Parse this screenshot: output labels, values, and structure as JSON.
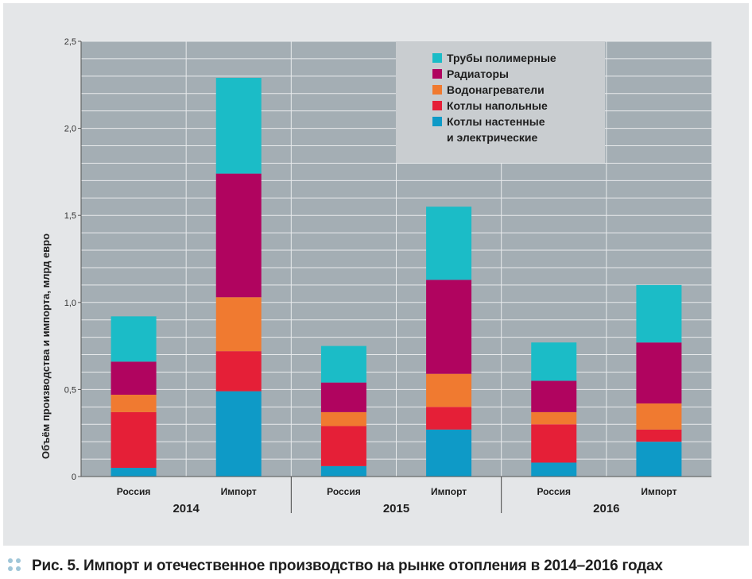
{
  "chart_data": {
    "type": "bar",
    "stacked": true,
    "title": "",
    "ylabel": "Объём производства и импорта, млрд евро",
    "xlabel": "",
    "ylim": [
      0,
      2.5
    ],
    "yticks": [
      0,
      0.5,
      1.0,
      1.5,
      2.0,
      2.5
    ],
    "ytick_labels": [
      "0",
      "0,5",
      "1,0",
      "1,5",
      "2,0",
      "2,5"
    ],
    "groups": [
      "2014",
      "2015",
      "2016"
    ],
    "categories": [
      "Россия",
      "Импорт",
      "Россия",
      "Импорт",
      "Россия",
      "Импорт"
    ],
    "category_group": [
      0,
      0,
      1,
      1,
      2,
      2
    ],
    "series": [
      {
        "name": "Котлы настенные и электрические",
        "color": "#0e9ac7",
        "values": [
          0.05,
          0.49,
          0.06,
          0.27,
          0.08,
          0.2
        ]
      },
      {
        "name": "Котлы напольные",
        "color": "#e51f37",
        "values": [
          0.32,
          0.23,
          0.23,
          0.13,
          0.22,
          0.07
        ]
      },
      {
        "name": "Водонагреватели",
        "color": "#f07a30",
        "values": [
          0.1,
          0.31,
          0.08,
          0.19,
          0.07,
          0.15
        ]
      },
      {
        "name": "Радиаторы",
        "color": "#b0045f",
        "values": [
          0.19,
          0.71,
          0.17,
          0.54,
          0.18,
          0.35
        ]
      },
      {
        "name": "Трубы полимерные",
        "color": "#1bbcc7",
        "values": [
          0.26,
          0.55,
          0.21,
          0.42,
          0.22,
          0.33
        ]
      }
    ],
    "legend": {
      "position": "top-right",
      "items": [
        {
          "label": "Трубы полимерные",
          "color": "#1bbcc7"
        },
        {
          "label": "Радиаторы",
          "color": "#b0045f"
        },
        {
          "label": "Водонагреватели",
          "color": "#f07a30"
        },
        {
          "label": "Котлы напольные",
          "color": "#e51f37"
        },
        {
          "label": "Котлы настенные",
          "label2": "и электрические",
          "color": "#0e9ac7"
        }
      ]
    }
  },
  "caption": "Рис. 5. Импорт и отечественное производство на рынке отопления в 2014–2016 годах"
}
